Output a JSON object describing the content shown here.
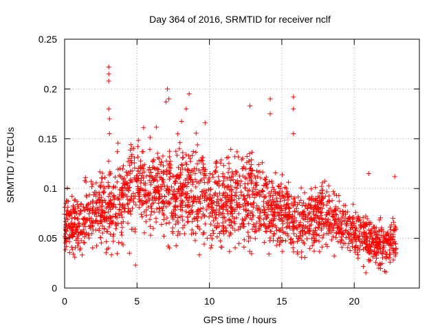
{
  "chart_data": {
    "type": "scatter",
    "title": "Day 364 of 2016, SRMTID for receiver nclf",
    "xlabel": "GPS time / hours",
    "ylabel": "SRMTID / TECUs",
    "xlim": [
      0,
      24.5
    ],
    "ylim": [
      0,
      0.25
    ],
    "x_ticks": [
      0,
      5,
      10,
      15,
      20
    ],
    "x_tick_labels": [
      "0",
      "5",
      "10",
      "15",
      "20"
    ],
    "y_ticks": [
      0,
      0.05,
      0.1,
      0.15,
      0.2,
      0.25
    ],
    "y_tick_labels": [
      "0",
      "0.05",
      "0.1",
      "0.15",
      "0.2",
      "0.25"
    ],
    "grid": true,
    "marker": "plus",
    "series": [
      {
        "name": "SRMTID",
        "color": "#ff0000",
        "trend_x": [
          0,
          1,
          2,
          3,
          4,
          5,
          6,
          7,
          8,
          9,
          10,
          11,
          12,
          13,
          14,
          15,
          16,
          17,
          18,
          19,
          20,
          21,
          22,
          23
        ],
        "trend_y": [
          0.065,
          0.065,
          0.075,
          0.08,
          0.09,
          0.105,
          0.1,
          0.095,
          0.1,
          0.095,
          0.09,
          0.085,
          0.09,
          0.095,
          0.08,
          0.075,
          0.065,
          0.07,
          0.075,
          0.065,
          0.055,
          0.05,
          0.045,
          0.045
        ],
        "spread_y": [
          0.018,
          0.018,
          0.022,
          0.025,
          0.028,
          0.03,
          0.03,
          0.03,
          0.03,
          0.03,
          0.028,
          0.026,
          0.028,
          0.03,
          0.025,
          0.022,
          0.02,
          0.02,
          0.02,
          0.018,
          0.016,
          0.016,
          0.015,
          0.015
        ],
        "n_samples": 2300,
        "x_range": [
          0,
          22.9
        ],
        "outliers": [
          {
            "x": 3.05,
            "y": 0.222
          },
          {
            "x": 3.05,
            "y": 0.215
          },
          {
            "x": 3.05,
            "y": 0.208
          },
          {
            "x": 3.05,
            "y": 0.18
          },
          {
            "x": 3.1,
            "y": 0.17
          },
          {
            "x": 3.1,
            "y": 0.155
          },
          {
            "x": 4.9,
            "y": 0.023
          },
          {
            "x": 7.1,
            "y": 0.2
          },
          {
            "x": 7.2,
            "y": 0.19
          },
          {
            "x": 7.0,
            "y": 0.187
          },
          {
            "x": 8.6,
            "y": 0.195
          },
          {
            "x": 8.4,
            "y": 0.18
          },
          {
            "x": 9.7,
            "y": 0.166
          },
          {
            "x": 12.8,
            "y": 0.183
          },
          {
            "x": 14.2,
            "y": 0.19
          },
          {
            "x": 14.2,
            "y": 0.175
          },
          {
            "x": 15.8,
            "y": 0.192
          },
          {
            "x": 15.8,
            "y": 0.18
          },
          {
            "x": 15.8,
            "y": 0.155
          },
          {
            "x": 21.0,
            "y": 0.115
          },
          {
            "x": 22.8,
            "y": 0.112
          },
          {
            "x": 21.7,
            "y": 0.02
          },
          {
            "x": 22.1,
            "y": 0.017
          },
          {
            "x": 0.6,
            "y": 0.034
          },
          {
            "x": 0.7,
            "y": 0.031
          },
          {
            "x": 1.1,
            "y": 0.04
          }
        ]
      }
    ]
  }
}
